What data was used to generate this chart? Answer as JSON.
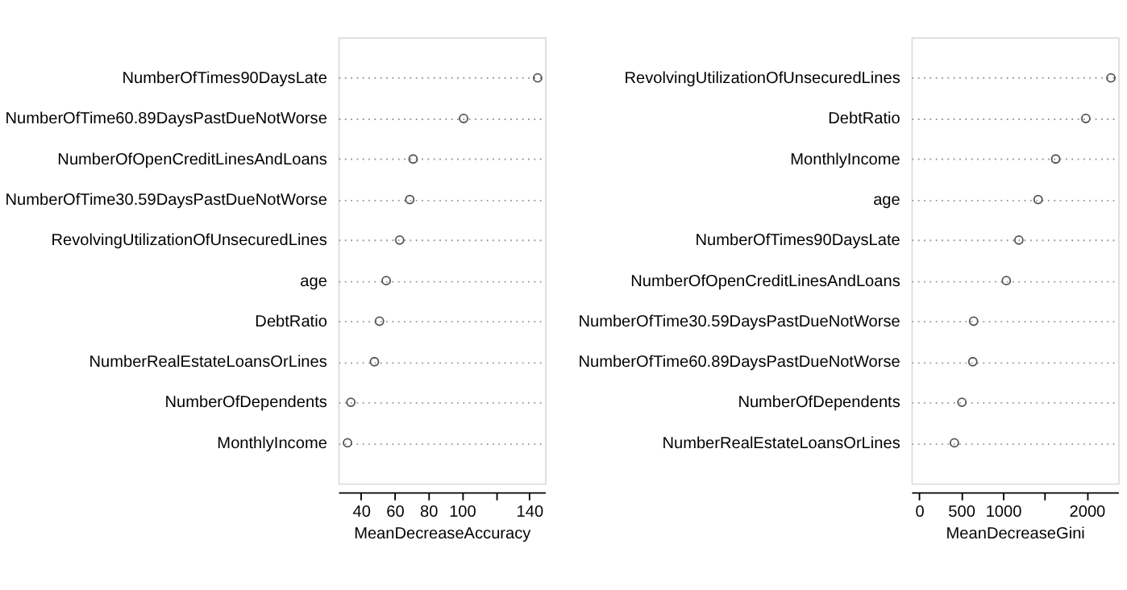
{
  "chart_data": [
    {
      "type": "scatter",
      "orientation": "horizontal",
      "xlabel": "MeanDecreaseAccuracy",
      "marker": "circle",
      "grid": "y",
      "categories": [
        "NumberOfTimes90DaysLate",
        "NumberOfTime60.89DaysPastDueNotWorse",
        "NumberOfOpenCreditLinesAndLoans",
        "NumberOfTime30.59DaysPastDueNotWorse",
        "RevolvingUtilizationOfUnsecuredLines",
        "age",
        "DebtRatio",
        "NumberRealEstateLoansOrLines",
        "NumberOfDependents",
        "MonthlyIncome"
      ],
      "values": [
        145,
        101,
        71,
        69,
        63,
        55,
        51,
        48,
        34,
        32
      ],
      "color": "#555555",
      "xlim": [
        26.5,
        149.4
      ],
      "xticks": [
        40,
        60,
        80,
        100,
        {
          "value": 120,
          "label": null
        },
        140
      ]
    },
    {
      "type": "scatter",
      "orientation": "horizontal",
      "xlabel": "MeanDecreaseGini",
      "marker": "circle",
      "grid": "y",
      "categories": [
        "RevolvingUtilizationOfUnsecuredLines",
        "DebtRatio",
        "MonthlyIncome",
        "age",
        "NumberOfTimes90DaysLate",
        "NumberOfOpenCreditLinesAndLoans",
        "NumberOfTime30.59DaysPastDueNotWorse",
        "NumberOfTime60.89DaysPastDueNotWorse",
        "NumberOfDependents",
        "NumberRealEstateLoansOrLines"
      ],
      "values": [
        2290,
        1990,
        1630,
        1420,
        1190,
        1040,
        650,
        640,
        510,
        420
      ],
      "color": "#555555",
      "xlim": [
        -94,
        2376
      ],
      "xticks": [
        0,
        500,
        1000,
        {
          "value": 1500,
          "label": null
        },
        2000
      ]
    }
  ]
}
